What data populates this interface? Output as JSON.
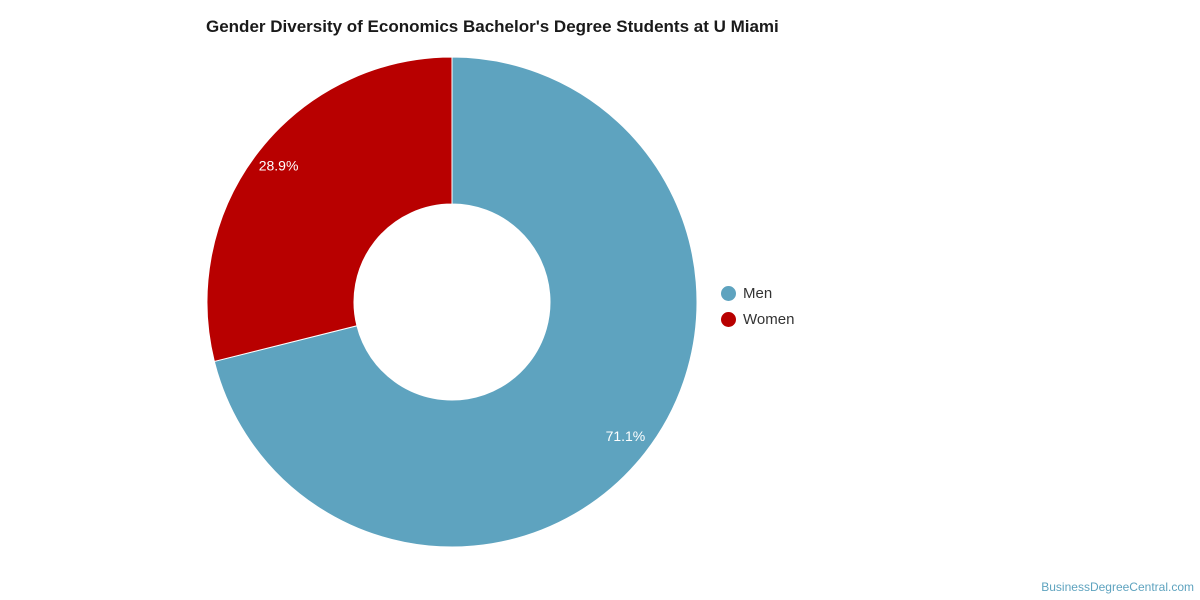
{
  "chart_data": {
    "type": "pie",
    "title": "Gender Diversity of Economics Bachelor's Degree Students at U Miami",
    "donut": true,
    "legend_placement": "right",
    "slices": [
      {
        "name": "Men",
        "value": 71.1,
        "label": "71.1%",
        "color": "#5ea3bf"
      },
      {
        "name": "Women",
        "value": 28.9,
        "label": "28.9%",
        "color": "#b80000"
      }
    ]
  },
  "watermark": "BusinessDegreeCentral.com"
}
